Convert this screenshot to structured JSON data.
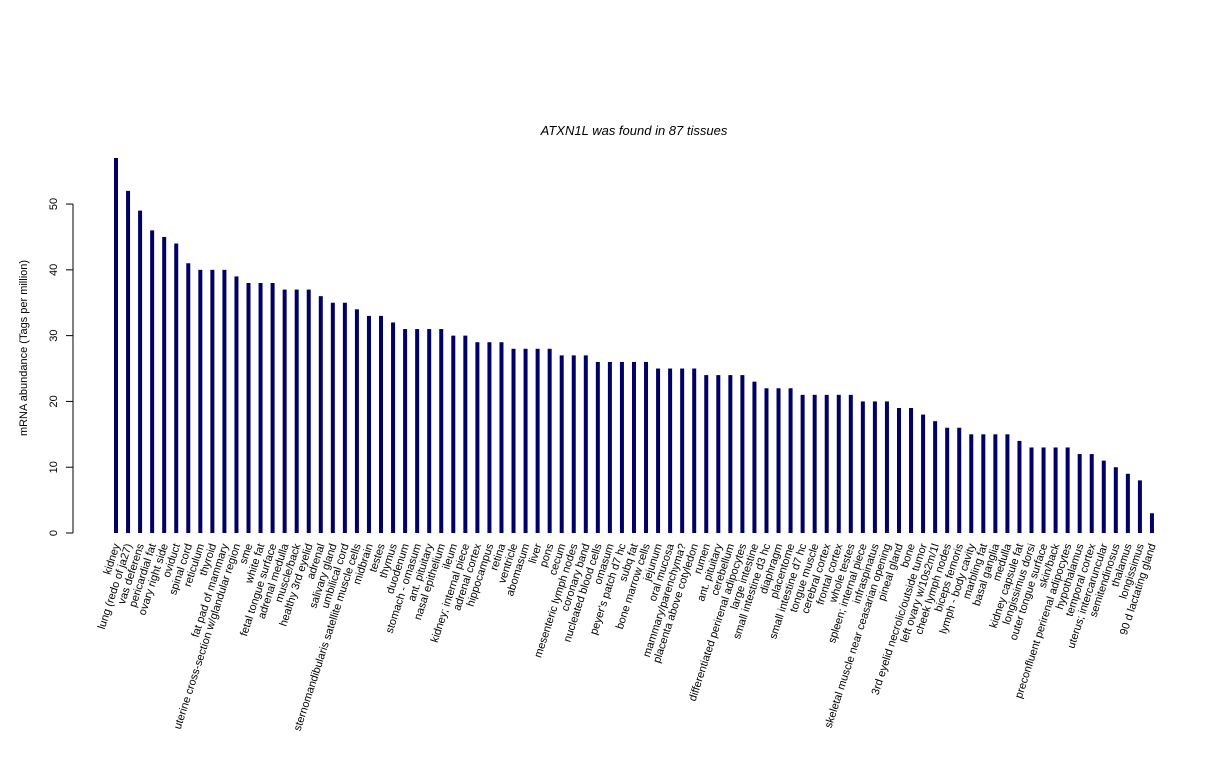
{
  "chart_data": {
    "type": "bar",
    "title": "ATXN1L  was found in  87  tissues",
    "ylabel": "mRNA abundance (Tags per million)",
    "xlabel": "",
    "ylim": [
      0,
      57
    ],
    "yticks": [
      0,
      10,
      20,
      30,
      40,
      50
    ],
    "bar_color": "#000066",
    "categories": [
      "kidney",
      "lung (redo of ja27)",
      "vas deferens",
      "pericardial fat",
      "ovary right side",
      "oviduct",
      "spinal cord",
      "reticulum",
      "thyroid",
      "fat pad of mammary",
      "uterine cross-section w/glandular region",
      "sme",
      "white fat",
      "fetal tongue surface",
      "adrenal medulla",
      "muscle/back",
      "healthy 3rd eyelid",
      "adrenal",
      "salivary gland",
      "umbilical cord",
      "sternomandibularis satellite muscle cells",
      "midbrain",
      "testes",
      "thymus",
      "duodenum",
      "stomach - omasum",
      "ant. pituitary",
      "nasal epithelium",
      "ileum",
      "kidney; internal piece",
      "adrenal cortex",
      "hippocampus",
      "retina",
      "ventricle",
      "abomasum",
      "liver",
      "pons",
      "cecum",
      "mesenteric lymph nodes",
      "coronary band",
      "nucleated blood cells",
      "omasum",
      "peyer's patch d7 hc",
      "subq fat",
      "bone marrow cells",
      "jejunum",
      "oral mucosa",
      "mammary/parenchyma?",
      "placenta above cotyledon",
      "rumen",
      "ant. pituitary",
      "cerebellum",
      "differentiated perirenal adipocytes",
      "large intestine",
      "small intestine d3 hc",
      "diaphragm",
      "placentome",
      "small intestine d7 hc",
      "tongue muscle",
      "cerebral cortex",
      "frontal cortex",
      "whole testes",
      "spleen; internal piece",
      "infraspinatus",
      "skeletal muscle near ceasarian opening",
      "pineal gland",
      "bone",
      "3rd eyelid necrolic/outside tumor",
      "left ovary w/10s2m/1l",
      "cheek lymph nodes",
      "biceps femoris",
      "lymph - body cavity",
      "marbling fat",
      "basal ganglia",
      "medulla",
      "kidney capsule fat",
      "longissimus dorsi",
      "outer tongue surface",
      "skin/back",
      "preconfluent perirenal adipocytes",
      "hypothalamus",
      "temporal cortex",
      "uterus; intercaruncular",
      "semitendinosus",
      "thalamus",
      "longissimus",
      "90 d lactating gland"
    ],
    "values": [
      57,
      52,
      49,
      46,
      45,
      44,
      41,
      40,
      40,
      40,
      39,
      38,
      38,
      38,
      37,
      37,
      37,
      36,
      35,
      35,
      34,
      33,
      33,
      32,
      31,
      31,
      31,
      31,
      30,
      30,
      29,
      29,
      29,
      28,
      28,
      28,
      28,
      27,
      27,
      27,
      26,
      26,
      26,
      26,
      26,
      25,
      25,
      25,
      25,
      24,
      24,
      24,
      24,
      23,
      22,
      22,
      22,
      21,
      21,
      21,
      21,
      21,
      20,
      20,
      20,
      19,
      19,
      18,
      17,
      16,
      16,
      15,
      15,
      15,
      15,
      14,
      13,
      13,
      13,
      13,
      12,
      12,
      11,
      10,
      9,
      8,
      3
    ]
  }
}
